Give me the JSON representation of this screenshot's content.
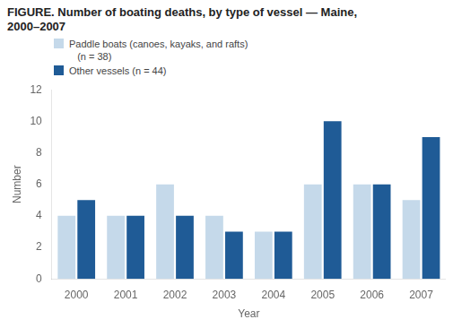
{
  "chart_data": {
    "type": "bar",
    "title": "FIGURE. Number of boating deaths, by type of vessel — Maine,\n2000–2007",
    "x_label": "Year",
    "y_label": "Number",
    "categories": [
      "2000",
      "2001",
      "2002",
      "2003",
      "2004",
      "2005",
      "2006",
      "2007"
    ],
    "series": [
      {
        "name": "Paddle boats (canoes, kayaks, and rafts)\n   (n = 38)",
        "color": "#c5d9ea",
        "values": [
          4,
          4,
          6,
          4,
          3,
          6,
          6,
          5
        ]
      },
      {
        "name": "Other vessels (n = 44)",
        "color": "#1f5b96",
        "values": [
          5,
          4,
          4,
          3,
          3,
          10,
          6,
          9
        ]
      }
    ],
    "ylim": [
      0,
      12
    ],
    "yticks": [
      0,
      2,
      4,
      6,
      8,
      10,
      12
    ],
    "grid": false,
    "legend": "upper left"
  }
}
